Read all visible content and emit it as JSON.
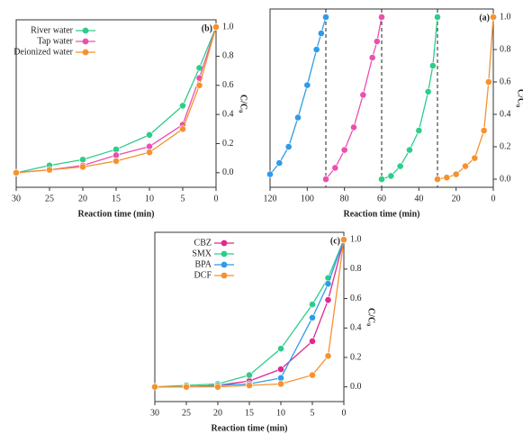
{
  "chart_data": [
    {
      "type": "line",
      "panel_label": "(b)",
      "x_label": "Reaction time (min)",
      "y_label": "C/C₀",
      "xlim": [
        30,
        0
      ],
      "xticks": [
        30,
        25,
        20,
        15,
        10,
        5,
        0
      ],
      "ylim": [
        -0.1,
        1.05
      ],
      "yticks": [
        {
          "value": 0,
          "label": "0.0"
        },
        0.2,
        0.4,
        0.6,
        0.8,
        {
          "value": 1,
          "label": "1.0"
        }
      ],
      "y_axis_side": "right",
      "legend": "upper left",
      "series": [
        {
          "name": "River water",
          "color": "#2ecc8a",
          "x": [
            30,
            25,
            20,
            15,
            10,
            5,
            2.5,
            0
          ],
          "values": [
            0.0,
            0.05,
            0.09,
            0.16,
            0.26,
            0.46,
            0.72,
            1.0
          ]
        },
        {
          "name": "Tap water",
          "color": "#ec4fae",
          "x": [
            30,
            25,
            20,
            15,
            10,
            5,
            2.5,
            0
          ],
          "values": [
            0.0,
            0.02,
            0.05,
            0.12,
            0.18,
            0.33,
            0.65,
            1.0
          ]
        },
        {
          "name": "Deionized water",
          "color": "#f5922f",
          "x": [
            30,
            25,
            20,
            15,
            10,
            5,
            2.5,
            0
          ],
          "values": [
            0.0,
            0.02,
            0.04,
            0.08,
            0.14,
            0.3,
            0.6,
            1.0
          ]
        }
      ]
    },
    {
      "type": "line",
      "panel_label": "(a)",
      "x_label": "Reaction time (min)",
      "y_label": "C/C₀",
      "xlim": [
        120,
        0
      ],
      "xticks": [
        120,
        100,
        80,
        60,
        40,
        20,
        0
      ],
      "ylim": [
        -0.05,
        1.05
      ],
      "yticks": [
        {
          "value": 0,
          "label": "0.0"
        },
        0.2,
        0.4,
        0.6,
        0.8,
        {
          "value": 1,
          "label": "1.0"
        }
      ],
      "y_axis_side": "right",
      "vlines": [
        90,
        60,
        30
      ],
      "series": [
        {
          "color": "#f5922f",
          "x": [
            30,
            25,
            20,
            15,
            10,
            5,
            2.5,
            0
          ],
          "values": [
            0.0,
            0.01,
            0.03,
            0.08,
            0.13,
            0.3,
            0.6,
            1.0
          ]
        },
        {
          "color": "#2ecc8a",
          "x": [
            60,
            55,
            50,
            45,
            40,
            35,
            32.5,
            30
          ],
          "values": [
            0.0,
            0.02,
            0.08,
            0.18,
            0.3,
            0.54,
            0.7,
            1.0
          ]
        },
        {
          "color": "#ec4fae",
          "x": [
            90,
            85,
            80,
            75,
            70,
            65,
            62.5,
            60
          ],
          "values": [
            0.0,
            0.07,
            0.18,
            0.32,
            0.52,
            0.75,
            0.85,
            1.0
          ]
        },
        {
          "color": "#2f9be8",
          "x": [
            120,
            115,
            110,
            105,
            100,
            95,
            92.5,
            90
          ],
          "values": [
            0.03,
            0.1,
            0.2,
            0.38,
            0.58,
            0.8,
            0.9,
            1.0
          ]
        }
      ]
    },
    {
      "type": "line",
      "panel_label": "(c)",
      "x_label": "Reaction time (min)",
      "y_label": "C/C₀",
      "xlim": [
        30,
        0
      ],
      "xticks": [
        30,
        25,
        20,
        15,
        10,
        5,
        0
      ],
      "ylim": [
        -0.1,
        1.05
      ],
      "yticks": [
        {
          "value": 0,
          "label": "0.0"
        },
        0.2,
        0.4,
        0.6,
        0.8,
        {
          "value": 1,
          "label": "1.0"
        }
      ],
      "y_axis_side": "right",
      "legend": "upper left",
      "series": [
        {
          "name": "CBZ",
          "color": "#e0288f",
          "x": [
            30,
            25,
            20,
            15,
            10,
            5,
            2.5,
            0
          ],
          "values": [
            0.0,
            0.0,
            0.01,
            0.04,
            0.12,
            0.31,
            0.59,
            1.0
          ]
        },
        {
          "name": "SMX",
          "color": "#2ecc8a",
          "x": [
            30,
            25,
            20,
            15,
            10,
            5,
            2.5,
            0
          ],
          "values": [
            0.0,
            0.01,
            0.02,
            0.08,
            0.26,
            0.56,
            0.74,
            1.0
          ]
        },
        {
          "name": "BPA",
          "color": "#2f9be8",
          "x": [
            30,
            25,
            20,
            15,
            10,
            5,
            2.5,
            0
          ],
          "values": [
            0.0,
            0.0,
            0.01,
            0.02,
            0.06,
            0.47,
            0.7,
            1.0
          ]
        },
        {
          "name": "DCF",
          "color": "#f5922f",
          "x": [
            30,
            25,
            20,
            15,
            10,
            5,
            2.5,
            0
          ],
          "values": [
            0.0,
            0.0,
            0.0,
            0.01,
            0.02,
            0.08,
            0.21,
            1.0
          ]
        }
      ]
    }
  ]
}
